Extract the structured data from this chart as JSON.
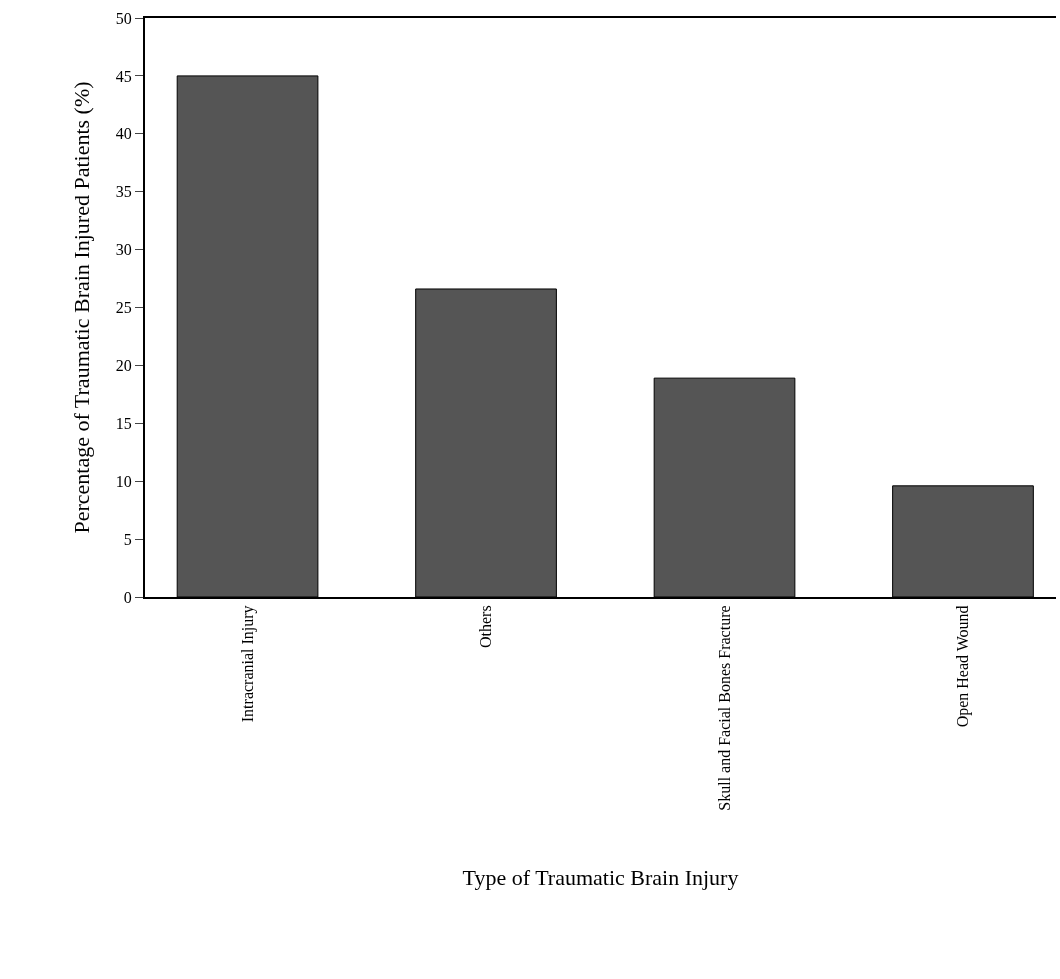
{
  "chart_data": {
    "type": "bar",
    "xlabel": "Type of Traumatic Brain Injury",
    "ylabel": "Percentage of Traumatic Brain Injured Patients (%)",
    "categories": [
      "Intracranial Injury",
      "Others",
      "Skull and Facial Bones Fracture",
      "Open Head Wound"
    ],
    "values": [
      45,
      26.6,
      18.9,
      9.6
    ],
    "color": "#555555",
    "ylim": [
      0,
      50
    ],
    "yticks": [
      0,
      5,
      10,
      15,
      20,
      25,
      30,
      35,
      40,
      45,
      50
    ],
    "grid": false,
    "legend": false
  }
}
